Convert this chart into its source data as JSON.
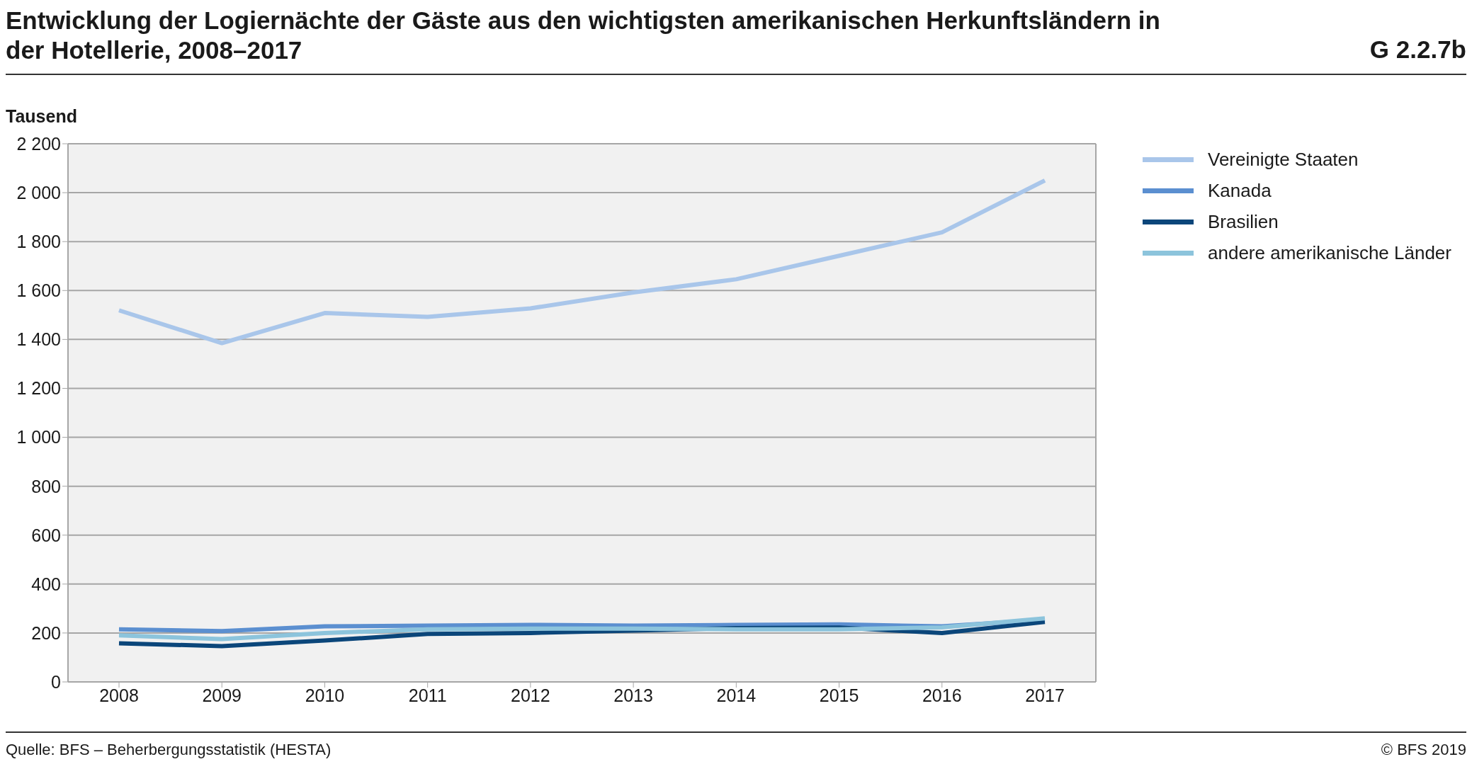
{
  "chart_data": {
    "type": "line",
    "title": "Entwicklung der Logiernächte der Gäste aus den wichtigsten amerikanischen Herkunftsländern in der Hotellerie, 2008–2017",
    "ylabel": "Tausend",
    "annotations": [
      "G 2.2.7b",
      "Quelle: BFS – Beherbergungsstatistik (HESTA)",
      "© BFS 2019"
    ],
    "categories": [
      "2008",
      "2009",
      "2010",
      "2011",
      "2012",
      "2013",
      "2014",
      "2015",
      "2016",
      "2017"
    ],
    "series": [
      {
        "name": "Vereinigte Staaten",
        "color": "#a9c6ea",
        "values": [
          1519,
          1385,
          1508,
          1492,
          1527,
          1592,
          1646,
          1742,
          1838,
          2050
        ]
      },
      {
        "name": "Kanada",
        "color": "#5b8fd0",
        "values": [
          215,
          208,
          227,
          230,
          233,
          230,
          233,
          235,
          227,
          254
        ]
      },
      {
        "name": "Brasilien",
        "color": "#0b467a",
        "values": [
          158,
          146,
          169,
          196,
          200,
          210,
          220,
          222,
          200,
          245
        ]
      },
      {
        "name": "andere amerikanische Länder",
        "color": "#8cc4dc",
        "values": [
          190,
          175,
          200,
          215,
          218,
          218,
          215,
          215,
          223,
          260
        ]
      }
    ],
    "ylim": [
      0,
      2200
    ],
    "yticks": [
      0,
      200,
      400,
      600,
      800,
      {
        "value": 1000,
        "label": "1 000"
      },
      {
        "value": 1200,
        "label": "1 200"
      },
      {
        "value": 1400,
        "label": "1 400"
      },
      {
        "value": 1600,
        "label": "1 600"
      },
      {
        "value": 1800,
        "label": "1 800"
      },
      {
        "value": 2000,
        "label": "2 000"
      },
      {
        "value": 2200,
        "label": "2 200"
      }
    ],
    "grid": "y",
    "legend": "top right",
    "marker": "none",
    "line_style": "solid"
  }
}
